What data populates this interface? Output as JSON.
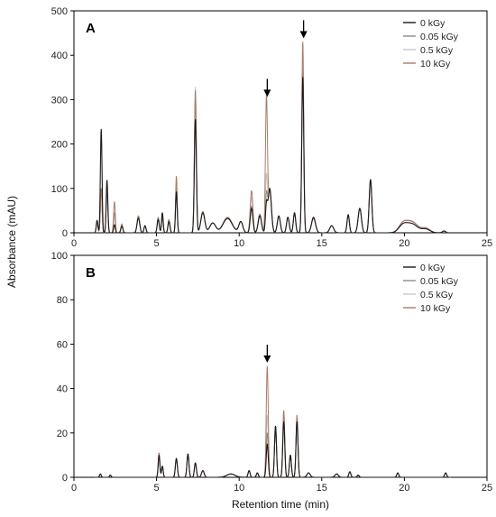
{
  "figure": {
    "ylabel": "Absorbance (mAU)",
    "xlabel": "Retention time (min)"
  },
  "chart_data": [
    {
      "type": "line",
      "panel_label": "A",
      "xlim": [
        0,
        25
      ],
      "ylim": [
        0,
        500
      ],
      "x_ticks": [
        0,
        5,
        10,
        15,
        20,
        25
      ],
      "y_ticks": [
        0,
        100,
        200,
        300,
        400,
        500
      ],
      "legend_position": "top-right",
      "grid": false,
      "colors": [
        "#1a1a1a",
        "#8c8c8c",
        "#c8c8c8",
        "#b07a62"
      ],
      "series": [
        {
          "name": "0 kGy"
        },
        {
          "name": "0.05 kGy"
        },
        {
          "name": "0.5 kGy"
        },
        {
          "name": "10 kGy"
        }
      ],
      "peaks": [
        {
          "x": 1.4,
          "w": 0.05,
          "h": [
            28,
            25,
            25,
            25
          ]
        },
        {
          "x": 1.65,
          "w": 0.05,
          "h": [
            233,
            98,
            98,
            100
          ]
        },
        {
          "x": 2.0,
          "w": 0.05,
          "h": [
            118,
            97,
            97,
            100
          ]
        },
        {
          "x": 2.45,
          "w": 0.05,
          "h": [
            18,
            45,
            45,
            70
          ]
        },
        {
          "x": 2.9,
          "w": 0.06,
          "h": [
            15,
            16,
            16,
            20
          ]
        },
        {
          "x": 3.9,
          "w": 0.08,
          "h": [
            33,
            38,
            38,
            38
          ]
        },
        {
          "x": 4.3,
          "w": 0.06,
          "h": [
            16,
            16,
            16,
            16
          ]
        },
        {
          "x": 5.1,
          "w": 0.06,
          "h": [
            30,
            35,
            35,
            33
          ]
        },
        {
          "x": 5.35,
          "w": 0.05,
          "h": [
            45,
            40,
            40,
            32
          ]
        },
        {
          "x": 5.75,
          "w": 0.06,
          "h": [
            25,
            28,
            28,
            30
          ]
        },
        {
          "x": 6.2,
          "w": 0.05,
          "h": [
            92,
            100,
            110,
            127
          ]
        },
        {
          "x": 7.35,
          "w": 0.06,
          "h": [
            255,
            320,
            328,
            300
          ]
        },
        {
          "x": 7.8,
          "w": 0.12,
          "h": [
            45,
            48,
            48,
            46
          ]
        },
        {
          "x": 8.4,
          "w": 0.18,
          "h": [
            22,
            22,
            22,
            22
          ]
        },
        {
          "x": 9.3,
          "w": 0.28,
          "h": [
            32,
            35,
            35,
            34
          ]
        },
        {
          "x": 10.1,
          "w": 0.12,
          "h": [
            25,
            25,
            25,
            25
          ]
        },
        {
          "x": 10.75,
          "w": 0.08,
          "h": [
            55,
            60,
            80,
            95
          ]
        },
        {
          "x": 11.25,
          "w": 0.1,
          "h": [
            38,
            42,
            42,
            42
          ]
        },
        {
          "x": 11.65,
          "w": 0.06,
          "h": [
            58,
            80,
            120,
            298
          ]
        },
        {
          "x": 11.85,
          "w": 0.1,
          "h": [
            100,
            98,
            96,
            92
          ]
        },
        {
          "x": 12.4,
          "w": 0.09,
          "h": [
            38,
            38,
            38,
            38
          ]
        },
        {
          "x": 12.95,
          "w": 0.08,
          "h": [
            35,
            35,
            35,
            35
          ]
        },
        {
          "x": 13.35,
          "w": 0.07,
          "h": [
            45,
            45,
            45,
            45
          ]
        },
        {
          "x": 13.85,
          "w": 0.06,
          "h": [
            350,
            360,
            380,
            430
          ]
        },
        {
          "x": 14.5,
          "w": 0.12,
          "h": [
            35,
            33,
            33,
            32
          ]
        },
        {
          "x": 15.6,
          "w": 0.12,
          "h": [
            16,
            16,
            16,
            16
          ]
        },
        {
          "x": 16.6,
          "w": 0.07,
          "h": [
            40,
            42,
            42,
            40
          ]
        },
        {
          "x": 17.3,
          "w": 0.1,
          "h": [
            55,
            55,
            55,
            55
          ]
        },
        {
          "x": 17.95,
          "w": 0.08,
          "h": [
            120,
            120,
            118,
            115
          ]
        },
        {
          "x": 19.9,
          "w": 0.25,
          "h": [
            15,
            18,
            18,
            18
          ]
        },
        {
          "x": 20.45,
          "w": 0.35,
          "h": [
            20,
            25,
            25,
            24
          ]
        },
        {
          "x": 21.3,
          "w": 0.25,
          "h": [
            8,
            10,
            10,
            10
          ]
        },
        {
          "x": 22.4,
          "w": 0.1,
          "h": [
            4,
            4,
            4,
            4
          ]
        }
      ],
      "arrows": [
        11.7,
        13.9
      ],
      "data_range": [
        1.2,
        22.6
      ]
    },
    {
      "type": "line",
      "panel_label": "B",
      "xlim": [
        0,
        25
      ],
      "ylim": [
        0,
        100
      ],
      "x_ticks": [
        0,
        5,
        10,
        15,
        20,
        25
      ],
      "y_ticks": [
        0,
        20,
        40,
        60,
        80,
        100
      ],
      "legend_position": "top-right",
      "grid": false,
      "colors": [
        "#1a1a1a",
        "#8c8c8c",
        "#c8c8c8",
        "#b07a62"
      ],
      "series": [
        {
          "name": "0 kGy"
        },
        {
          "name": "0.05 kGy"
        },
        {
          "name": "0.5 kGy"
        },
        {
          "name": "10 kGy"
        }
      ],
      "peaks": [
        {
          "x": 1.6,
          "w": 0.05,
          "h": [
            1.5,
            1.5,
            1.5,
            1.5
          ]
        },
        {
          "x": 2.2,
          "w": 0.05,
          "h": [
            1,
            1,
            1,
            1
          ]
        },
        {
          "x": 5.15,
          "w": 0.05,
          "h": [
            10,
            10,
            10,
            11
          ]
        },
        {
          "x": 5.35,
          "w": 0.05,
          "h": [
            5,
            5,
            5,
            5
          ]
        },
        {
          "x": 6.2,
          "w": 0.06,
          "h": [
            8.5,
            8.5,
            8.5,
            8.5
          ]
        },
        {
          "x": 6.9,
          "w": 0.06,
          "h": [
            10.5,
            10.5,
            10.5,
            10.5
          ]
        },
        {
          "x": 7.35,
          "w": 0.06,
          "h": [
            6.5,
            6.5,
            6.5,
            6.5
          ]
        },
        {
          "x": 7.8,
          "w": 0.08,
          "h": [
            3,
            3,
            3,
            3
          ]
        },
        {
          "x": 9.5,
          "w": 0.25,
          "h": [
            1.5,
            1.5,
            1.5,
            1.5
          ]
        },
        {
          "x": 10.6,
          "w": 0.06,
          "h": [
            3,
            3,
            3,
            3
          ]
        },
        {
          "x": 11.1,
          "w": 0.06,
          "h": [
            2,
            2,
            2,
            2
          ]
        },
        {
          "x": 11.7,
          "w": 0.06,
          "h": [
            15,
            20,
            28,
            50
          ]
        },
        {
          "x": 12.2,
          "w": 0.06,
          "h": [
            23,
            23,
            23,
            23
          ]
        },
        {
          "x": 12.7,
          "w": 0.06,
          "h": [
            25,
            28,
            30,
            30
          ]
        },
        {
          "x": 13.1,
          "w": 0.06,
          "h": [
            10,
            10,
            10,
            10
          ]
        },
        {
          "x": 13.5,
          "w": 0.06,
          "h": [
            25,
            26,
            27,
            28
          ]
        },
        {
          "x": 14.2,
          "w": 0.1,
          "h": [
            2,
            2,
            2,
            2
          ]
        },
        {
          "x": 15.9,
          "w": 0.1,
          "h": [
            1.5,
            1.5,
            1.5,
            1.5
          ]
        },
        {
          "x": 16.7,
          "w": 0.06,
          "h": [
            2.5,
            2.5,
            2.5,
            2.5
          ]
        },
        {
          "x": 17.2,
          "w": 0.06,
          "h": [
            1,
            1,
            1,
            1
          ]
        },
        {
          "x": 19.6,
          "w": 0.06,
          "h": [
            2,
            2,
            2,
            2
          ]
        },
        {
          "x": 22.5,
          "w": 0.06,
          "h": [
            2,
            2,
            2,
            2
          ]
        }
      ],
      "arrows": [
        11.7
      ],
      "data_range": [
        1.2,
        22.8
      ]
    }
  ]
}
